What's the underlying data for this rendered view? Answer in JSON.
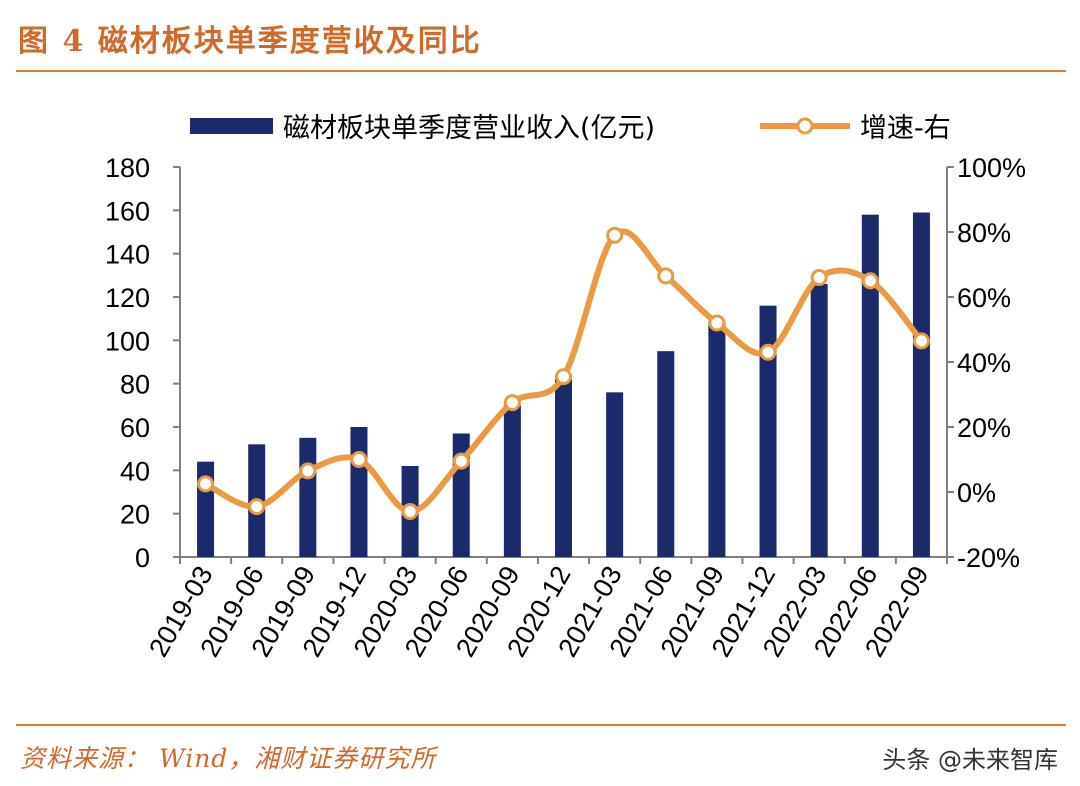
{
  "figure": {
    "title": "图 4 磁材板块单季度营收及同比",
    "source": "资料来源： Wind，湘财证券研究所",
    "watermark": "头条 @未来智库"
  },
  "colors": {
    "bar": "#1b2a6b",
    "line": "#eb9a44",
    "accent": "#e07a2c"
  },
  "chart_data": {
    "type": "bar",
    "title": "图 4 磁材板块单季度营收及同比",
    "categories": [
      "2019-03",
      "2019-06",
      "2019-09",
      "2019-12",
      "2020-03",
      "2020-06",
      "2020-09",
      "2020-12",
      "2021-03",
      "2021-06",
      "2021-09",
      "2021-12",
      "2022-03",
      "2022-06",
      "2022-09"
    ],
    "series": [
      {
        "name": "磁材板块单季度营业收入(亿元)",
        "type": "bar",
        "axis": "left",
        "values": [
          44,
          52,
          55,
          60,
          42,
          57,
          70,
          82,
          76,
          95,
          109,
          116,
          126,
          158,
          159
        ]
      },
      {
        "name": "增速-右",
        "type": "line",
        "axis": "right",
        "values": [
          2.5,
          -4.5,
          6.5,
          10,
          -6,
          9.5,
          27.5,
          35.5,
          79,
          66.5,
          52,
          43,
          66,
          65,
          46.5
        ]
      }
    ],
    "ylim": [
      0,
      180
    ],
    "yticks": [
      "0",
      "20",
      "40",
      "60",
      "80",
      "100",
      "120",
      "140",
      "160",
      "180"
    ],
    "y2lim": [
      -20,
      100
    ],
    "y2ticks": [
      "-20%",
      "0%",
      "20%",
      "40%",
      "60%",
      "80%",
      "100%"
    ],
    "legend_position": "top"
  }
}
